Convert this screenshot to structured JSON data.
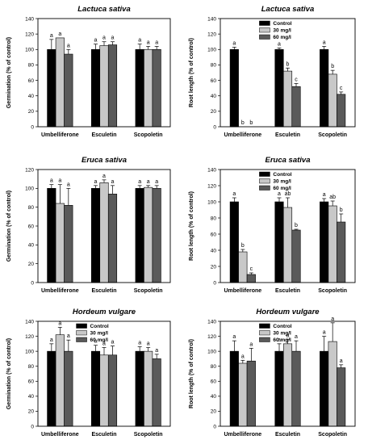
{
  "figure": {
    "categories": [
      "Umbelliferone",
      "Esculetin",
      "Scopoletin"
    ],
    "legend": [
      "Control",
      "30 mg/l",
      "60 mg/l"
    ],
    "series_colors": [
      "#000000",
      "#c8c8c8",
      "#5a5a5a"
    ]
  },
  "chart_data": [
    {
      "type": "bar",
      "title": "Lactuca sativa",
      "ylabel": "Germination (% of control)",
      "ylim": [
        0,
        140
      ],
      "yticks": [
        0,
        20,
        40,
        60,
        80,
        100,
        120,
        140
      ],
      "categories": [
        "Umbelliferone",
        "Esculetin",
        "Scopoletin"
      ],
      "series": [
        {
          "name": "Control",
          "values": [
            100,
            100,
            100
          ],
          "errors": [
            13,
            7,
            7
          ],
          "letters": [
            "a",
            "a",
            "a"
          ]
        },
        {
          "name": "30 mg/l",
          "values": [
            115,
            105,
            100
          ],
          "errors": [
            0,
            5,
            4
          ],
          "letters": [
            "a",
            "a",
            "a"
          ]
        },
        {
          "name": "60 mg/l",
          "values": [
            94,
            106,
            100
          ],
          "errors": [
            6,
            4,
            4
          ],
          "letters": [
            "a",
            "a",
            "a"
          ]
        }
      ]
    },
    {
      "type": "bar",
      "title": "Lactuca sativa",
      "ylabel": "Root length (% of control)",
      "ylim": [
        0,
        140
      ],
      "yticks": [
        0,
        20,
        40,
        60,
        80,
        100,
        120,
        140
      ],
      "categories": [
        "Umbelliferone",
        "Esculetin",
        "Scopoletin"
      ],
      "series": [
        {
          "name": "Control",
          "values": [
            100,
            100,
            100
          ],
          "errors": [
            3,
            2,
            4
          ],
          "letters": [
            "a",
            "a",
            "a"
          ]
        },
        {
          "name": "30 mg/l",
          "values": [
            0,
            72,
            68
          ],
          "errors": [
            0,
            4,
            5
          ],
          "letters": [
            "b",
            "b",
            "b"
          ]
        },
        {
          "name": "60 mg/l",
          "values": [
            0,
            52,
            42
          ],
          "errors": [
            0,
            4,
            3
          ],
          "letters": [
            "b",
            "c",
            "c"
          ]
        }
      ]
    },
    {
      "type": "bar",
      "title": "Eruca sativa",
      "ylabel": "Germination (% of control)",
      "ylim": [
        0,
        120
      ],
      "yticks": [
        0,
        20,
        40,
        60,
        80,
        100,
        120
      ],
      "categories": [
        "Umbelliferone",
        "Esculetin",
        "Scopoletin"
      ],
      "series": [
        {
          "name": "Control",
          "values": [
            100,
            100,
            100
          ],
          "errors": [
            4,
            3,
            3
          ],
          "letters": [
            "a",
            "a",
            "a"
          ]
        },
        {
          "name": "30 mg/l",
          "values": [
            84,
            106,
            101
          ],
          "errors": [
            20,
            3,
            2
          ],
          "letters": [
            "a",
            "a",
            "a"
          ]
        },
        {
          "name": "60 mg/l",
          "values": [
            82,
            94,
            100
          ],
          "errors": [
            18,
            9,
            3
          ],
          "letters": [
            "a",
            "a",
            "a"
          ]
        }
      ]
    },
    {
      "type": "bar",
      "title": "Eruca sativa",
      "ylabel": "Root length (% of control)",
      "ylim": [
        0,
        140
      ],
      "yticks": [
        0,
        20,
        40,
        60,
        80,
        100,
        120,
        140
      ],
      "categories": [
        "Umbelliferone",
        "Esculetin",
        "Scopoletin"
      ],
      "series": [
        {
          "name": "Control",
          "values": [
            100,
            100,
            100
          ],
          "errors": [
            5,
            5,
            4
          ],
          "letters": [
            "a",
            "a",
            "a"
          ]
        },
        {
          "name": "30 mg/l",
          "values": [
            38,
            93,
            95
          ],
          "errors": [
            3,
            12,
            6
          ],
          "letters": [
            "b",
            "ab",
            "ab"
          ]
        },
        {
          "name": "60 mg/l",
          "values": [
            10,
            65,
            75
          ],
          "errors": [
            2,
            1,
            10
          ],
          "letters": [
            "c",
            "b",
            "b"
          ]
        }
      ]
    },
    {
      "type": "bar",
      "title": "Hordeum vulgare",
      "ylabel": "Germination (% of control)",
      "ylim": [
        0,
        140
      ],
      "yticks": [
        0,
        20,
        40,
        60,
        80,
        100,
        120,
        140
      ],
      "categories": [
        "Umbelliferone",
        "Esculetin",
        "Scopoletin"
      ],
      "series": [
        {
          "name": "Control",
          "values": [
            100,
            100,
            100
          ],
          "errors": [
            10,
            8,
            6
          ],
          "letters": [
            "a",
            "a",
            "a"
          ]
        },
        {
          "name": "30 mg/l",
          "values": [
            122,
            95,
            100
          ],
          "errors": [
            10,
            10,
            5
          ],
          "letters": [
            "a",
            "a",
            "a"
          ]
        },
        {
          "name": "60 mg/l",
          "values": [
            100,
            95,
            90
          ],
          "errors": [
            15,
            12,
            6
          ],
          "letters": [
            "a",
            "a",
            "a"
          ]
        }
      ]
    },
    {
      "type": "bar",
      "title": "Hordeum vulgare",
      "ylabel": "Root length (% of control)",
      "ylim": [
        0,
        140
      ],
      "yticks": [
        0,
        20,
        40,
        60,
        80,
        100,
        120,
        140
      ],
      "categories": [
        "Umbelliferone",
        "Esculetin",
        "Scopoletin"
      ],
      "series": [
        {
          "name": "Control",
          "values": [
            100,
            100,
            100
          ],
          "errors": [
            14,
            10,
            20
          ],
          "letters": [
            "a",
            "a",
            "a"
          ]
        },
        {
          "name": "30 mg/l",
          "values": [
            84,
            110,
            113
          ],
          "errors": [
            4,
            6,
            25
          ],
          "letters": [
            "a",
            "a",
            "a"
          ]
        },
        {
          "name": "60 mg/l",
          "values": [
            87,
            100,
            78
          ],
          "errors": [
            17,
            14,
            4
          ],
          "letters": [
            "a",
            "a",
            "a"
          ]
        }
      ]
    }
  ]
}
